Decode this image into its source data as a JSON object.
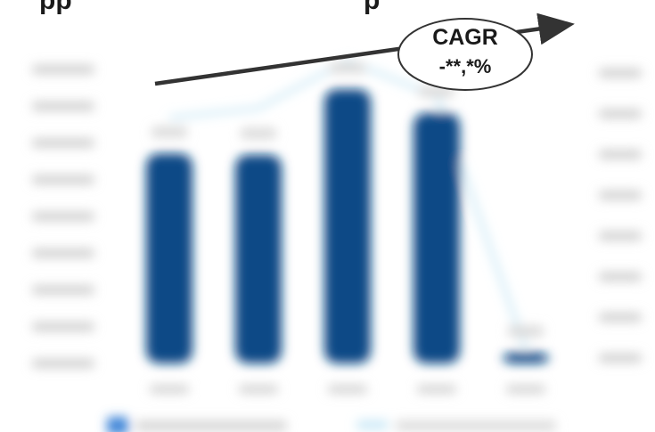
{
  "title_fragment": "pp",
  "title_fragment_right": "p",
  "cagr": {
    "label": "CAGR",
    "value": "-**,*%"
  },
  "colors": {
    "bar": "#0d4a86",
    "line": "#bfe3f3",
    "arrow": "#333333",
    "legend_bar": "#3f86d8",
    "legend_line": "#c7e7f6"
  },
  "chart_data": {
    "type": "bar",
    "categories": [
      "",
      "",
      "",
      "",
      ""
    ],
    "series": [
      {
        "type": "bar",
        "values": [
          880,
          875,
          1150,
          1050,
          45
        ]
      },
      {
        "type": "line",
        "values": [
          1030,
          1070,
          1270,
          1120,
          60
        ]
      }
    ],
    "ylim": [
      0,
      1300
    ],
    "y_ticks": [
      "",
      "",
      "",
      "",
      "",
      "",
      "",
      "",
      ""
    ],
    "y2_ticks": [
      "",
      "",
      "",
      "",
      "",
      "",
      "",
      ""
    ],
    "title": "",
    "xlabel": "",
    "ylabel": "",
    "legend": {
      "placement": "bottom",
      "entries": [
        "",
        ""
      ]
    }
  }
}
